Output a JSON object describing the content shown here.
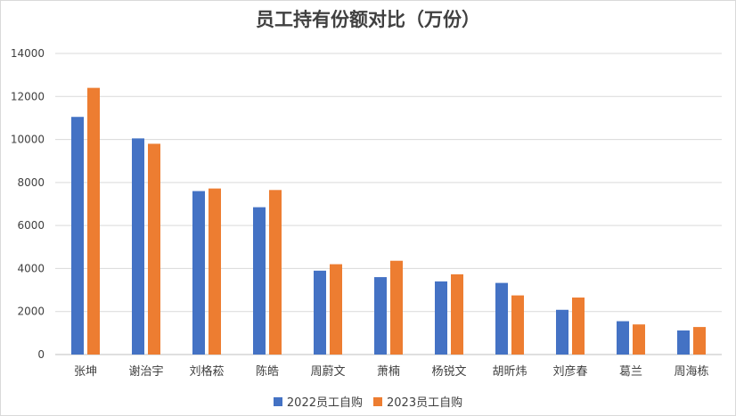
{
  "chart_data": {
    "type": "bar",
    "title": "员工持有份额对比（万份）",
    "categories": [
      "张坤",
      "谢治宇",
      "刘格菘",
      "陈皓",
      "周蔚文",
      "萧楠",
      "杨锐文",
      "胡昕炜",
      "刘彦春",
      "葛兰",
      "周海栋"
    ],
    "series": [
      {
        "name": "2022员工自购",
        "color": "#4472c4",
        "values": [
          11050,
          10050,
          7600,
          6850,
          3900,
          3600,
          3400,
          3330,
          2080,
          1550,
          1120
        ]
      },
      {
        "name": "2023员工自购",
        "color": "#ed7d31",
        "values": [
          12400,
          9800,
          7720,
          7650,
          4200,
          4360,
          3730,
          2750,
          2650,
          1400,
          1280
        ]
      }
    ],
    "ylim": [
      0,
      14000
    ],
    "yticks": [
      0,
      2000,
      4000,
      6000,
      8000,
      10000,
      12000,
      14000
    ],
    "grid": true,
    "legend_position": "bottom"
  }
}
